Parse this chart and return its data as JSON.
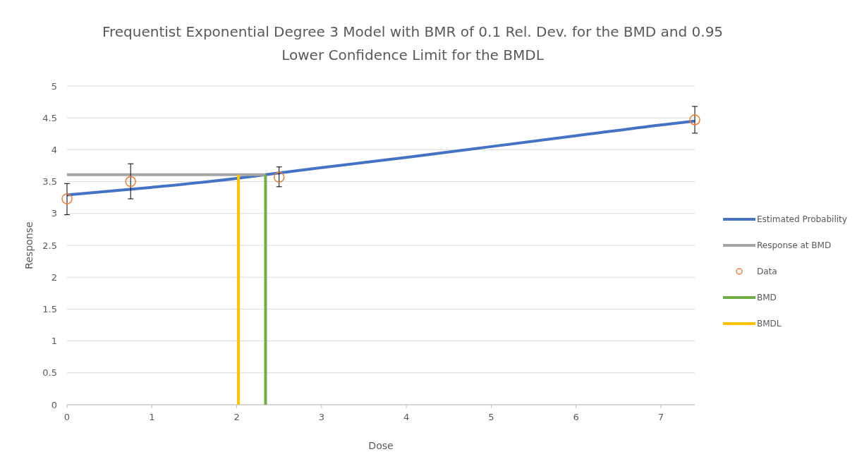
{
  "chart_data": {
    "type": "line",
    "title": "Frequentist Exponential Degree 3 Model with BMR of 0.1 Rel. Dev. for the BMD and 0.95 Lower Confidence Limit for the BMDL",
    "xlabel": "Dose",
    "ylabel": "Response",
    "xlim": [
      0,
      7.4
    ],
    "xticks": [
      0,
      1,
      2,
      3,
      4,
      5,
      6,
      7
    ],
    "ylim": [
      0,
      5
    ],
    "yticks": [
      0,
      0.5,
      1,
      1.5,
      2,
      2.5,
      3,
      3.5,
      4,
      4.5,
      5
    ],
    "grid": "y",
    "legend": "right",
    "series": [
      {
        "name": "Estimated Probability",
        "color": "#4472c4",
        "marker": "none",
        "x": [
          0,
          1,
          2,
          2.34,
          3,
          4,
          5,
          6,
          7,
          7.4
        ],
        "values": [
          3.29,
          3.41,
          3.55,
          3.61,
          3.72,
          3.88,
          4.05,
          4.22,
          4.39,
          4.45
        ]
      },
      {
        "name": "Response at BMD",
        "color": "#a5a5a5",
        "marker": "none",
        "x": [
          0,
          2.34
        ],
        "values": [
          3.61,
          3.61
        ]
      },
      {
        "name": "Data",
        "type": "scatter",
        "color": "#ed7d31",
        "marker": "circle",
        "x": [
          0,
          0.75,
          2.5,
          7.4
        ],
        "values": [
          3.23,
          3.5,
          3.57,
          4.47
        ],
        "errors": [
          [
            2.98,
            3.47
          ],
          [
            3.23,
            3.78
          ],
          [
            3.42,
            3.73
          ],
          [
            4.26,
            4.68
          ]
        ]
      },
      {
        "name": "BMD",
        "color": "#70ad47",
        "marker": "none",
        "x": [
          2.34,
          2.34
        ],
        "values": [
          0,
          3.61
        ]
      },
      {
        "name": "BMDL",
        "color": "#ffc000",
        "marker": "none",
        "x": [
          2.02,
          2.02
        ],
        "values": [
          0,
          3.61
        ]
      }
    ]
  }
}
